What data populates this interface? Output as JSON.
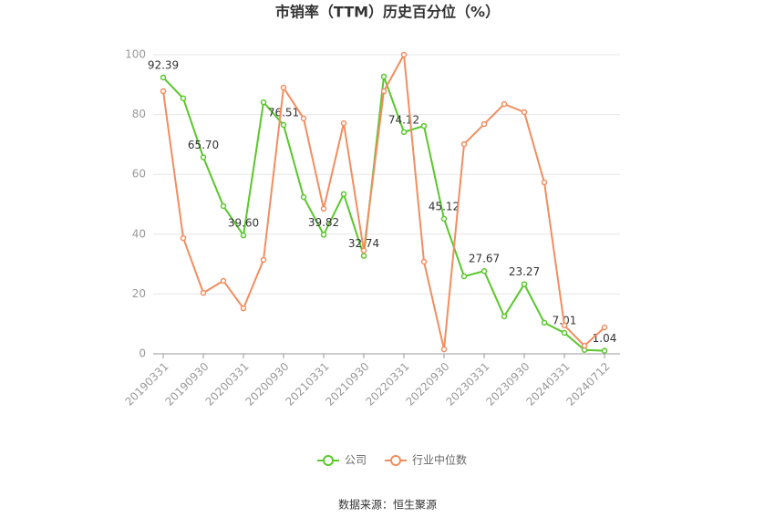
{
  "chart_data": {
    "type": "line",
    "title": "市销率（TTM）历史百分位（%）",
    "categories": [
      "20190331",
      null,
      "20190930",
      null,
      "20200331",
      null,
      "20200930",
      null,
      "20210331",
      null,
      "20210930",
      null,
      "20220331",
      null,
      "20220930",
      null,
      "20230331",
      null,
      "20230930",
      null,
      "20240331",
      null,
      "20240712"
    ],
    "series": [
      {
        "name": "公司",
        "color": "#5ac72c",
        "values": [
          92.39,
          85.4,
          65.7,
          49.4,
          39.6,
          84.1,
          76.51,
          52.4,
          39.82,
          53.4,
          32.74,
          92.7,
          74.12,
          76.2,
          45.12,
          25.9,
          27.67,
          12.5,
          23.27,
          10.4,
          7.01,
          1.3,
          1.04
        ],
        "value_labels": [
          "92.39",
          null,
          "65.70",
          null,
          "39.60",
          null,
          "76.51",
          null,
          "39.82",
          null,
          "32.74",
          null,
          "74.12",
          null,
          "45.12",
          null,
          "27.67",
          null,
          "23.27",
          null,
          "7.01",
          null,
          "1.04"
        ]
      },
      {
        "name": "行业中位数",
        "color": "#f28d5f",
        "values": [
          87.8,
          38.7,
          20.4,
          24.4,
          15.2,
          31.4,
          89.0,
          78.7,
          48.5,
          77.1,
          34.5,
          87.8,
          100,
          30.8,
          1.5,
          70.1,
          76.8,
          83.5,
          80.8,
          57.3,
          9.5,
          2.7,
          8.8
        ]
      }
    ],
    "ylim": [
      0,
      100
    ],
    "yticks": [
      0,
      20,
      40,
      60,
      80,
      100
    ],
    "grid": true,
    "source": "数据来源：恒生聚源"
  }
}
